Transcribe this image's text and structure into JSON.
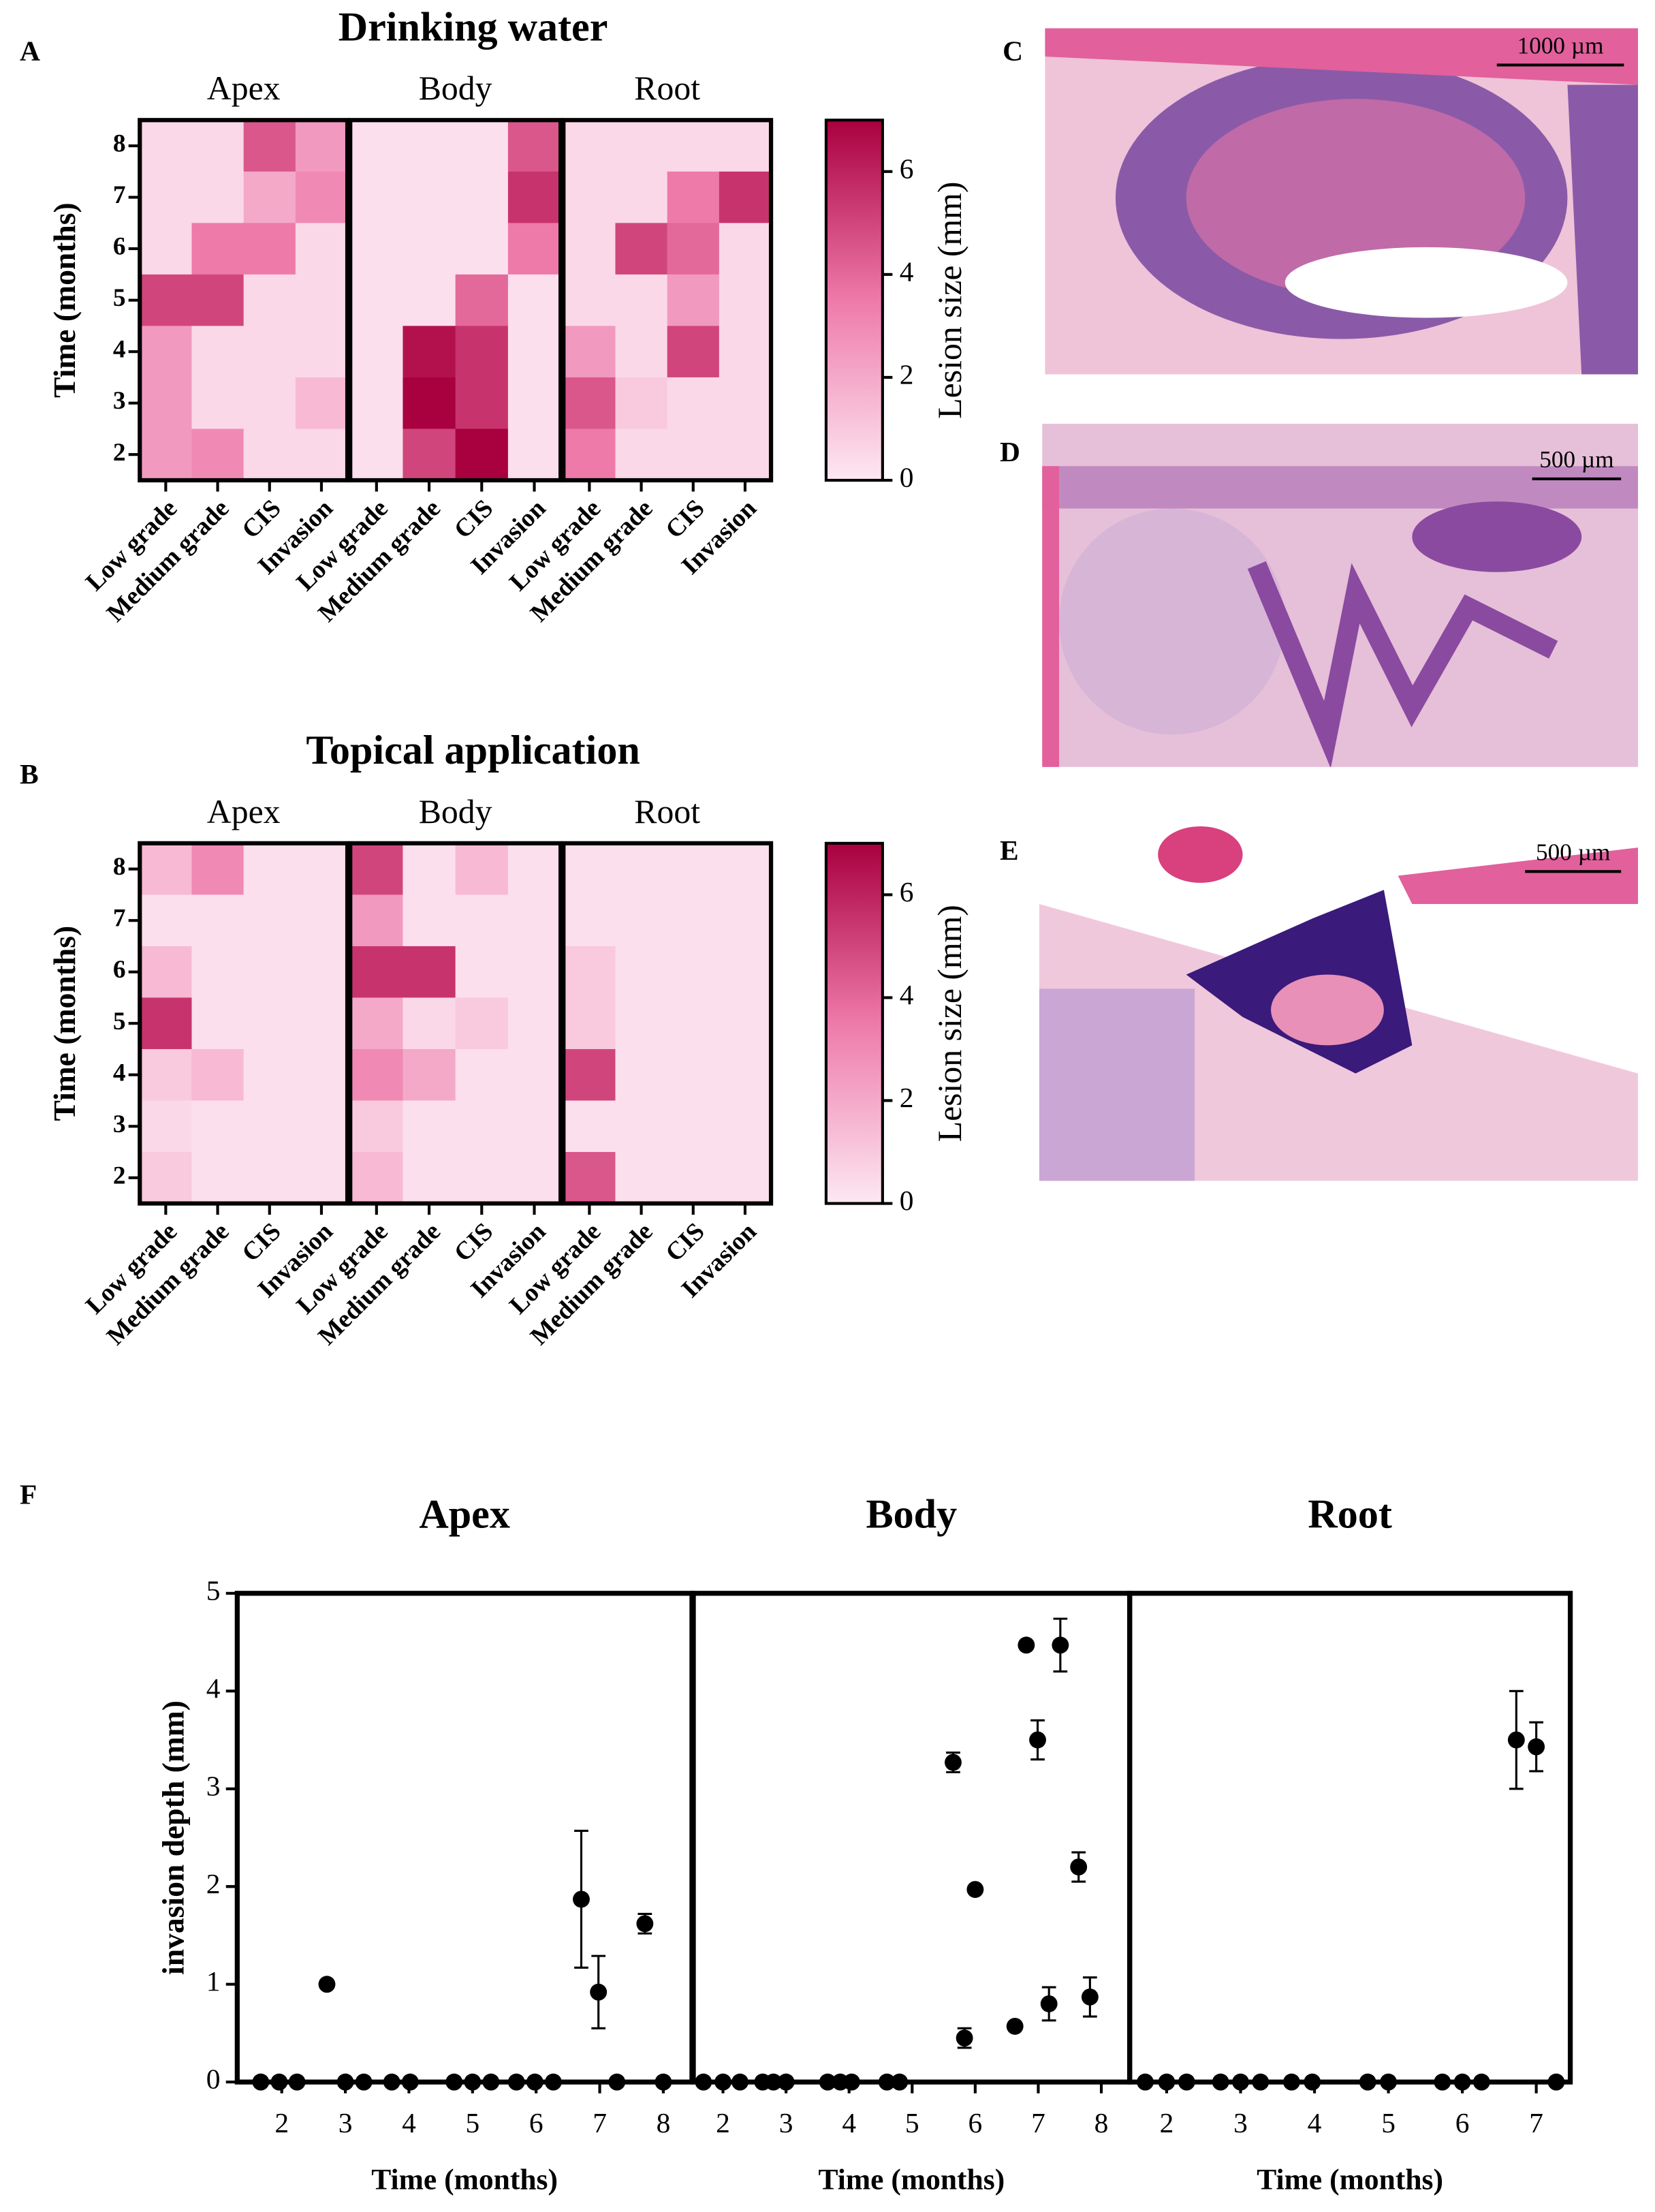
{
  "chart_data": [
    {
      "type": "heatmap",
      "panel_label": "A",
      "title": "Drinking water",
      "ylabel": "Time (months)",
      "columns": [
        "Low grade",
        "Medium grade",
        "CIS",
        "Invasion"
      ],
      "rows": [
        8,
        7,
        6,
        5,
        4,
        3,
        2
      ],
      "colorbar_label": "Lesion size (mm)",
      "zlim": [
        0,
        7
      ],
      "zticks": [
        0,
        2,
        4,
        6
      ],
      "colormap": [
        "#fde8f2",
        "#ee7aaa",
        "#a9003f"
      ],
      "panels": [
        {
          "title": "Apex",
          "values": [
            [
              0.5,
              0.5,
              4.5,
              2.5
            ],
            [
              0.5,
              0.5,
              2,
              3
            ],
            [
              0.5,
              3.5,
              3.5,
              0.5
            ],
            [
              5,
              5,
              0.5,
              0.5
            ],
            [
              2.5,
              0.5,
              0.5,
              0.5
            ],
            [
              2.5,
              0.5,
              0.5,
              1.5
            ],
            [
              2.5,
              3,
              0.5,
              0.5
            ]
          ]
        },
        {
          "title": "Body",
          "values": [
            [
              0.3,
              0.3,
              0.3,
              4.5
            ],
            [
              0.3,
              0.3,
              0.3,
              5.5
            ],
            [
              0.3,
              0.3,
              0.3,
              3.5
            ],
            [
              0.3,
              0.3,
              4,
              0.3
            ],
            [
              0.3,
              6.5,
              5.5,
              0.3
            ],
            [
              0.3,
              7,
              5.5,
              0.3
            ],
            [
              0.3,
              5,
              7,
              0.3
            ]
          ]
        },
        {
          "title": "Root",
          "values": [
            [
              0.5,
              0.5,
              0.5,
              0.5
            ],
            [
              0.5,
              0.5,
              3.5,
              5.5
            ],
            [
              0.5,
              5,
              4,
              0.5
            ],
            [
              0.5,
              0.5,
              2.5,
              0.5
            ],
            [
              2.5,
              0.5,
              5,
              0.5
            ],
            [
              4.5,
              1,
              0.5,
              0.5
            ],
            [
              3.5,
              0.5,
              0.5,
              0.5
            ]
          ]
        }
      ]
    },
    {
      "type": "heatmap",
      "panel_label": "B",
      "title": "Topical application",
      "ylabel": "Time (months)",
      "columns": [
        "Low grade",
        "Medium grade",
        "CIS",
        "Invasion"
      ],
      "rows": [
        8,
        7,
        6,
        5,
        4,
        3,
        2
      ],
      "colorbar_label": "Lesion size (mm)",
      "zlim": [
        0,
        7
      ],
      "zticks": [
        0,
        2,
        4,
        6
      ],
      "colormap": [
        "#fde8f2",
        "#ee7aaa",
        "#a9003f"
      ],
      "panels": [
        {
          "title": "Apex",
          "values": [
            [
              1.5,
              3,
              0.3,
              0.3
            ],
            [
              0.3,
              0.3,
              0.3,
              0.3
            ],
            [
              1.5,
              0.3,
              0.3,
              0.3
            ],
            [
              5.5,
              0.3,
              0.3,
              0.3
            ],
            [
              1,
              1.5,
              0.3,
              0.3
            ],
            [
              0.5,
              0.3,
              0.3,
              0.3
            ],
            [
              1,
              0.3,
              0.3,
              0.3
            ]
          ]
        },
        {
          "title": "Body",
          "values": [
            [
              5,
              0.3,
              1.5,
              0.3
            ],
            [
              2.5,
              0.3,
              0.3,
              0.3
            ],
            [
              5.5,
              5.5,
              0.3,
              0.3
            ],
            [
              2,
              0.5,
              1,
              0.3
            ],
            [
              3,
              2,
              0.3,
              0.3
            ],
            [
              1,
              0.3,
              0.3,
              0.3
            ],
            [
              1.5,
              0.3,
              0.3,
              0.3
            ]
          ]
        },
        {
          "title": "Root",
          "values": [
            [
              0.3,
              0.3,
              0.3,
              0.3
            ],
            [
              0.3,
              0.3,
              0.3,
              0.3
            ],
            [
              1,
              0.3,
              0.3,
              0.3
            ],
            [
              1,
              0.3,
              0.3,
              0.3
            ],
            [
              5,
              0.3,
              0.3,
              0.3
            ],
            [
              0.3,
              0.3,
              0.3,
              0.3
            ],
            [
              4.5,
              0.3,
              0.3,
              0.3
            ]
          ]
        }
      ]
    },
    {
      "type": "scatter",
      "panel_label": "F",
      "ylabel": "invasion depth (mm)",
      "xlabel": "Time (months)",
      "ylim": [
        0,
        5
      ],
      "yticks": [
        0,
        1,
        2,
        3,
        4,
        5
      ],
      "color": "#000000",
      "panels": [
        {
          "title": "Apex",
          "xlim": [
            1.3,
            8.45
          ],
          "xticks": [
            2,
            3,
            4,
            5,
            6,
            7,
            8
          ],
          "x": [
            1.67,
            1.96,
            2.24,
            2.71,
            3.0,
            3.29,
            3.73,
            4.02,
            4.71,
            5.0,
            5.29,
            5.69,
            5.98,
            6.27,
            6.71,
            6.98,
            7.27,
            7.71,
            8.0
          ],
          "values": [
            0,
            0,
            0,
            1.0,
            0,
            0,
            0,
            0,
            0,
            0,
            0,
            0,
            0,
            0,
            1.87,
            0.92,
            0,
            1.62,
            0
          ],
          "errors": [
            null,
            null,
            null,
            null,
            null,
            null,
            null,
            null,
            null,
            null,
            null,
            null,
            null,
            null,
            0.7,
            0.37,
            null,
            0.1,
            null
          ]
        },
        {
          "title": "Body",
          "xlim": [
            1.53,
            8.45
          ],
          "xticks": [
            2,
            3,
            4,
            5,
            6,
            7,
            8
          ],
          "x": [
            1.69,
            2.0,
            2.27,
            2.63,
            2.8,
            3.0,
            3.66,
            3.86,
            4.04,
            4.6,
            4.8,
            5.65,
            5.83,
            6.0,
            6.63,
            6.81,
            6.99,
            7.17,
            7.35,
            7.64,
            7.82
          ],
          "values": [
            0,
            0,
            0,
            0,
            0,
            0,
            0,
            0,
            0,
            0,
            0,
            3.27,
            0.45,
            1.97,
            0.57,
            4.47,
            3.5,
            0.8,
            4.47,
            2.2,
            0.87
          ],
          "errors": [
            null,
            null,
            null,
            null,
            null,
            null,
            null,
            null,
            null,
            null,
            null,
            0.1,
            0.1,
            null,
            null,
            null,
            0.2,
            0.17,
            0.27,
            0.15,
            0.2
          ]
        },
        {
          "title": "Root",
          "xlim": [
            1.5,
            7.46
          ],
          "xticks": [
            2,
            3,
            4,
            5,
            6,
            7
          ],
          "x": [
            1.71,
            2.0,
            2.27,
            2.73,
            3.0,
            3.27,
            3.69,
            3.97,
            4.72,
            5.0,
            5.73,
            6.0,
            6.26,
            6.73,
            7.0,
            7.27
          ],
          "values": [
            0,
            0,
            0,
            0,
            0,
            0,
            0,
            0,
            0,
            0,
            0,
            0,
            0,
            3.5,
            3.43,
            0
          ],
          "errors": [
            null,
            null,
            null,
            null,
            null,
            null,
            null,
            null,
            null,
            null,
            null,
            null,
            null,
            0.5,
            0.25,
            null
          ]
        }
      ]
    }
  ],
  "micrographs": [
    {
      "label": "C",
      "scale_bar": "1000 µm"
    },
    {
      "label": "D",
      "scale_bar": "500 µm"
    },
    {
      "label": "E",
      "scale_bar": "500 µm"
    }
  ]
}
